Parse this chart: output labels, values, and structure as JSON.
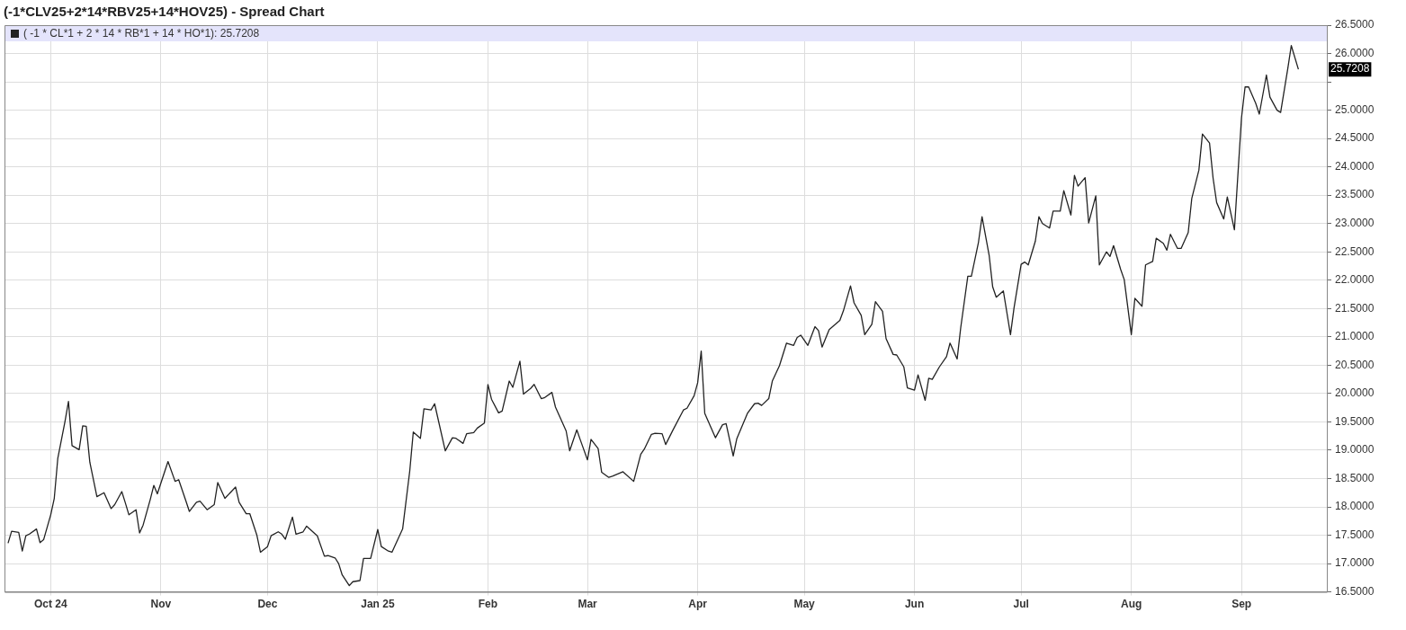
{
  "chart_data": {
    "type": "line",
    "title": "(-1*CLV25+2*14*RBV25+14*HOV25) - Spread Chart",
    "legend": "top left",
    "grid": true,
    "xlim": [
      "2024-09-18",
      "2025-09-25"
    ],
    "xticks": [
      {
        "value": "2024-10-01",
        "label": "Oct 24"
      },
      {
        "value": "2024-11-01",
        "label": "Nov"
      },
      {
        "value": "2024-12-01",
        "label": "Dec"
      },
      {
        "value": "2025-01-01",
        "label": "Jan 25"
      },
      {
        "value": "2025-02-01",
        "label": "Feb"
      },
      {
        "value": "2025-03-01",
        "label": "Mar"
      },
      {
        "value": "2025-04-01",
        "label": "Apr"
      },
      {
        "value": "2025-05-01",
        "label": "May"
      },
      {
        "value": "2025-06-01",
        "label": "Jun"
      },
      {
        "value": "2025-07-01",
        "label": "Jul"
      },
      {
        "value": "2025-08-01",
        "label": "Aug"
      },
      {
        "value": "2025-09-01",
        "label": "Sep"
      }
    ],
    "ylim": [
      16.5,
      26.5
    ],
    "yticks": [
      {
        "value": 16.5,
        "label": "16.5000"
      },
      {
        "value": 17,
        "label": "17.0000"
      },
      {
        "value": 17.5,
        "label": "17.5000"
      },
      {
        "value": 18,
        "label": "18.0000"
      },
      {
        "value": 18.5,
        "label": "18.5000"
      },
      {
        "value": 19,
        "label": "19.0000"
      },
      {
        "value": 19.5,
        "label": "19.5000"
      },
      {
        "value": 20,
        "label": "20.0000"
      },
      {
        "value": 20.5,
        "label": "20.5000"
      },
      {
        "value": 21,
        "label": "21.0000"
      },
      {
        "value": 21.5,
        "label": "21.5000"
      },
      {
        "value": 22,
        "label": "22.0000"
      },
      {
        "value": 22.5,
        "label": "22.5000"
      },
      {
        "value": 23,
        "label": "23.0000"
      },
      {
        "value": 23.5,
        "label": "23.5000"
      },
      {
        "value": 24,
        "label": "24.0000"
      },
      {
        "value": 24.5,
        "label": "24.5000"
      },
      {
        "value": 25,
        "label": "25.0000"
      },
      {
        "value": 25.5,
        "label": null
      },
      {
        "value": 26,
        "label": "26.0000"
      },
      {
        "value": 26.5,
        "label": "26.5000"
      }
    ],
    "annotations": [
      "25.7208"
    ],
    "series": [
      {
        "name": "( -1 * CL*1 + 2 * 14 * RB*1 + 14 * HO*1): 25.7208",
        "color": "#222222",
        "x": [
          "2024-09-19",
          "2024-09-20",
          "2024-09-22",
          "2024-09-23",
          "2024-09-24",
          "2024-09-25",
          "2024-09-27",
          "2024-09-28",
          "2024-09-29",
          "2024-10-01",
          "2024-10-02",
          "2024-10-03",
          "2024-10-05",
          "2024-10-06",
          "2024-10-07",
          "2024-10-09",
          "2024-10-10",
          "2024-10-11",
          "2024-10-12",
          "2024-10-14",
          "2024-10-16",
          "2024-10-18",
          "2024-10-19",
          "2024-10-21",
          "2024-10-22",
          "2024-10-23",
          "2024-10-25",
          "2024-10-26",
          "2024-10-27",
          "2024-10-29",
          "2024-10-30",
          "2024-10-31",
          "2024-11-03",
          "2024-11-05",
          "2024-11-06",
          "2024-11-08",
          "2024-11-09",
          "2024-11-11",
          "2024-11-12",
          "2024-11-14",
          "2024-11-16",
          "2024-11-17",
          "2024-11-19",
          "2024-11-22",
          "2024-11-23",
          "2024-11-25",
          "2024-11-26",
          "2024-11-28",
          "2024-11-29",
          "2024-12-01",
          "2024-12-02",
          "2024-12-04",
          "2024-12-05",
          "2024-12-06",
          "2024-12-08",
          "2024-12-09",
          "2024-12-11",
          "2024-12-12",
          "2024-12-15",
          "2024-12-17",
          "2024-12-18",
          "2024-12-20",
          "2024-12-21",
          "2024-12-22",
          "2024-12-24",
          "2024-12-25",
          "2024-12-27",
          "2024-12-28",
          "2024-12-30",
          "2025-01-01",
          "2025-01-02",
          "2025-01-04",
          "2025-01-05",
          "2025-01-08",
          "2025-01-10",
          "2025-01-11",
          "2025-01-13",
          "2025-01-14",
          "2025-01-16",
          "2025-01-17",
          "2025-01-20",
          "2025-01-22",
          "2025-01-23",
          "2025-01-25",
          "2025-01-26",
          "2025-01-28",
          "2025-01-29",
          "2025-01-31",
          "2025-02-01",
          "2025-02-02",
          "2025-02-04",
          "2025-02-05",
          "2025-02-07",
          "2025-02-08",
          "2025-02-10",
          "2025-02-11",
          "2025-02-13",
          "2025-02-14",
          "2025-02-16",
          "2025-02-17",
          "2025-02-19",
          "2025-02-20",
          "2025-02-23",
          "2025-02-24",
          "2025-02-26",
          "2025-02-27",
          "2025-03-01",
          "2025-03-02",
          "2025-03-04",
          "2025-03-05",
          "2025-03-07",
          "2025-03-08",
          "2025-03-11",
          "2025-03-14",
          "2025-03-16",
          "2025-03-17",
          "2025-03-19",
          "2025-03-20",
          "2025-03-22",
          "2025-03-23",
          "2025-03-25",
          "2025-03-28",
          "2025-03-29",
          "2025-03-31",
          "2025-04-01",
          "2025-04-02",
          "2025-04-03",
          "2025-04-06",
          "2025-04-08",
          "2025-04-09",
          "2025-04-11",
          "2025-04-12",
          "2025-04-15",
          "2025-04-17",
          "2025-04-18",
          "2025-04-19",
          "2025-04-21",
          "2025-04-22",
          "2025-04-24",
          "2025-04-26",
          "2025-04-28",
          "2025-04-29",
          "2025-04-30",
          "2025-05-02",
          "2025-05-04",
          "2025-05-05",
          "2025-05-06",
          "2025-05-08",
          "2025-05-11",
          "2025-05-12",
          "2025-05-14",
          "2025-05-15",
          "2025-05-17",
          "2025-05-18",
          "2025-05-20",
          "2025-05-21",
          "2025-05-23",
          "2025-05-24",
          "2025-05-26",
          "2025-05-27",
          "2025-05-29",
          "2025-05-30",
          "2025-06-01",
          "2025-06-02",
          "2025-06-04",
          "2025-06-05",
          "2025-06-06",
          "2025-06-08",
          "2025-06-10",
          "2025-06-11",
          "2025-06-13",
          "2025-06-14",
          "2025-06-16",
          "2025-06-17",
          "2025-06-19",
          "2025-06-20",
          "2025-06-22",
          "2025-06-23",
          "2025-06-24",
          "2025-06-26",
          "2025-06-28",
          "2025-06-29",
          "2025-07-01",
          "2025-07-02",
          "2025-07-03",
          "2025-07-05",
          "2025-07-06",
          "2025-07-07",
          "2025-07-09",
          "2025-07-10",
          "2025-07-12",
          "2025-07-13",
          "2025-07-15",
          "2025-07-16",
          "2025-07-17",
          "2025-07-19",
          "2025-07-20",
          "2025-07-22",
          "2025-07-23",
          "2025-07-25",
          "2025-07-26",
          "2025-07-27",
          "2025-07-29",
          "2025-07-30",
          "2025-08-01",
          "2025-08-02",
          "2025-08-04",
          "2025-08-05",
          "2025-08-07",
          "2025-08-08",
          "2025-08-10",
          "2025-08-11",
          "2025-08-12",
          "2025-08-14",
          "2025-08-15",
          "2025-08-17",
          "2025-08-18",
          "2025-08-20",
          "2025-08-21",
          "2025-08-23",
          "2025-08-24",
          "2025-08-25",
          "2025-08-27",
          "2025-08-28",
          "2025-08-30",
          "2025-09-01",
          "2025-09-02",
          "2025-09-03",
          "2025-09-05",
          "2025-09-06",
          "2025-09-08",
          "2025-09-09",
          "2025-09-11",
          "2025-09-12",
          "2025-09-14",
          "2025-09-15",
          "2025-09-17"
        ],
        "values": [
          17.36,
          17.57,
          17.55,
          17.22,
          17.49,
          17.52,
          17.61,
          17.37,
          17.42,
          17.86,
          18.15,
          18.86,
          19.5,
          19.86,
          19.08,
          19.01,
          19.43,
          19.42,
          18.79,
          18.18,
          18.25,
          17.97,
          18.04,
          18.27,
          18.07,
          17.86,
          17.95,
          17.54,
          17.68,
          18.13,
          18.38,
          18.23,
          18.8,
          18.45,
          18.48,
          18.11,
          17.92,
          18.08,
          18.1,
          17.95,
          18.04,
          18.43,
          18.15,
          18.35,
          18.08,
          17.88,
          17.88,
          17.5,
          17.2,
          17.3,
          17.49,
          17.56,
          17.52,
          17.43,
          17.82,
          17.52,
          17.56,
          17.66,
          17.49,
          17.13,
          17.14,
          17.1,
          17.0,
          16.8,
          16.61,
          16.68,
          16.7,
          17.09,
          17.09,
          17.6,
          17.3,
          17.22,
          17.2,
          17.61,
          18.63,
          19.32,
          19.21,
          19.73,
          19.71,
          19.82,
          18.99,
          19.22,
          19.21,
          19.12,
          19.29,
          19.31,
          19.39,
          19.48,
          20.16,
          19.9,
          19.66,
          19.69,
          20.22,
          20.11,
          20.57,
          19.99,
          20.09,
          20.16,
          19.91,
          19.93,
          20.02,
          19.76,
          19.34,
          18.99,
          19.36,
          19.18,
          18.83,
          19.19,
          19.03,
          18.61,
          18.52,
          18.54,
          18.62,
          18.45,
          18.93,
          19.02,
          19.28,
          19.3,
          19.29,
          19.1,
          19.35,
          19.71,
          19.74,
          19.96,
          20.19,
          20.75,
          19.65,
          19.22,
          19.45,
          19.47,
          18.9,
          19.2,
          19.65,
          19.82,
          19.83,
          19.79,
          19.91,
          20.22,
          20.49,
          20.89,
          20.85,
          20.99,
          21.03,
          20.85,
          21.18,
          21.11,
          20.82,
          21.13,
          21.29,
          21.46,
          21.9,
          21.6,
          21.38,
          21.04,
          21.22,
          21.62,
          21.45,
          20.97,
          20.69,
          20.68,
          20.47,
          20.1,
          20.06,
          20.33,
          19.88,
          20.27,
          20.25,
          20.47,
          20.65,
          20.89,
          20.61,
          21.16,
          22.07,
          22.07,
          22.67,
          23.12,
          22.44,
          21.88,
          21.7,
          21.81,
          21.04,
          21.51,
          22.28,
          22.32,
          22.27,
          22.69,
          23.12,
          23.0,
          22.92,
          23.22,
          23.22,
          23.58,
          23.15,
          23.85,
          23.66,
          23.81,
          23.01,
          23.49,
          22.27,
          22.5,
          22.42,
          22.61,
          22.19,
          22.01,
          21.04,
          21.68,
          21.54,
          22.27,
          22.33,
          22.74,
          22.65,
          22.53,
          22.81,
          22.56,
          22.56,
          22.84,
          23.44,
          23.94,
          24.58,
          24.42,
          23.8,
          23.37,
          23.08,
          23.47,
          22.89,
          24.87,
          25.41,
          25.41,
          25.12,
          24.93,
          25.62,
          25.23,
          25.0,
          24.96,
          25.73,
          26.14,
          25.7208
        ]
      }
    ]
  }
}
